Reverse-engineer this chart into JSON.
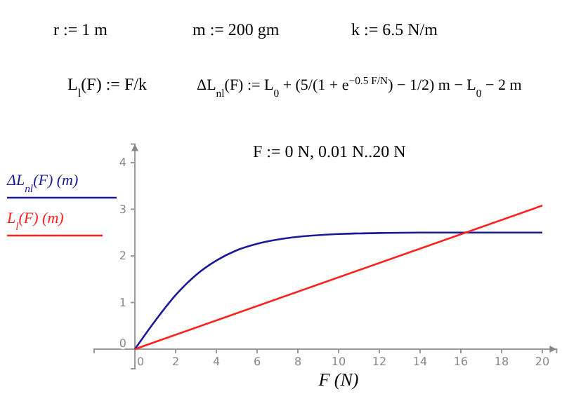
{
  "chart_data": {
    "type": "line",
    "xlabel": "F  (N)",
    "xlim": [
      -2,
      20.7
    ],
    "ylim": [
      -0.42,
      4.4
    ],
    "xticks": [
      0,
      2,
      4,
      6,
      8,
      10,
      12,
      14,
      16,
      18,
      20
    ],
    "yticks": [
      0,
      1,
      2,
      3,
      4
    ],
    "grid": false,
    "legend": "left",
    "marker": "none",
    "line_style": "solid",
    "annotations": [
      "r := 1 m",
      "m := 200 gm",
      "k := 6.5 N/m",
      "L$_{l}$(F) := F/k",
      "ΔL$_{nl}$(F) := L$_{0}$ + (5/(1 + e$^{−0.5 F/N}$) − 1/2) m − L$_{0}$ − 2 m",
      "F := 0 N, 0.01 N..20 N"
    ],
    "series": [
      {
        "name": "ΔL$_{nl}$(F)  (m)",
        "color": "#1a1a99",
        "x": [
          0,
          1,
          2,
          3,
          4,
          5,
          6,
          7,
          8,
          10,
          12,
          14,
          16,
          18,
          20
        ],
        "values": [
          0,
          0.61,
          1.16,
          1.59,
          1.9,
          2.12,
          2.26,
          2.35,
          2.41,
          2.47,
          2.49,
          2.5,
          2.5,
          2.5,
          2.5
        ]
      },
      {
        "name": "L$_{l}$(F)  (m)",
        "color": "#ff2020",
        "x": [
          0,
          20
        ],
        "values": [
          0,
          3.08
        ]
      }
    ]
  }
}
